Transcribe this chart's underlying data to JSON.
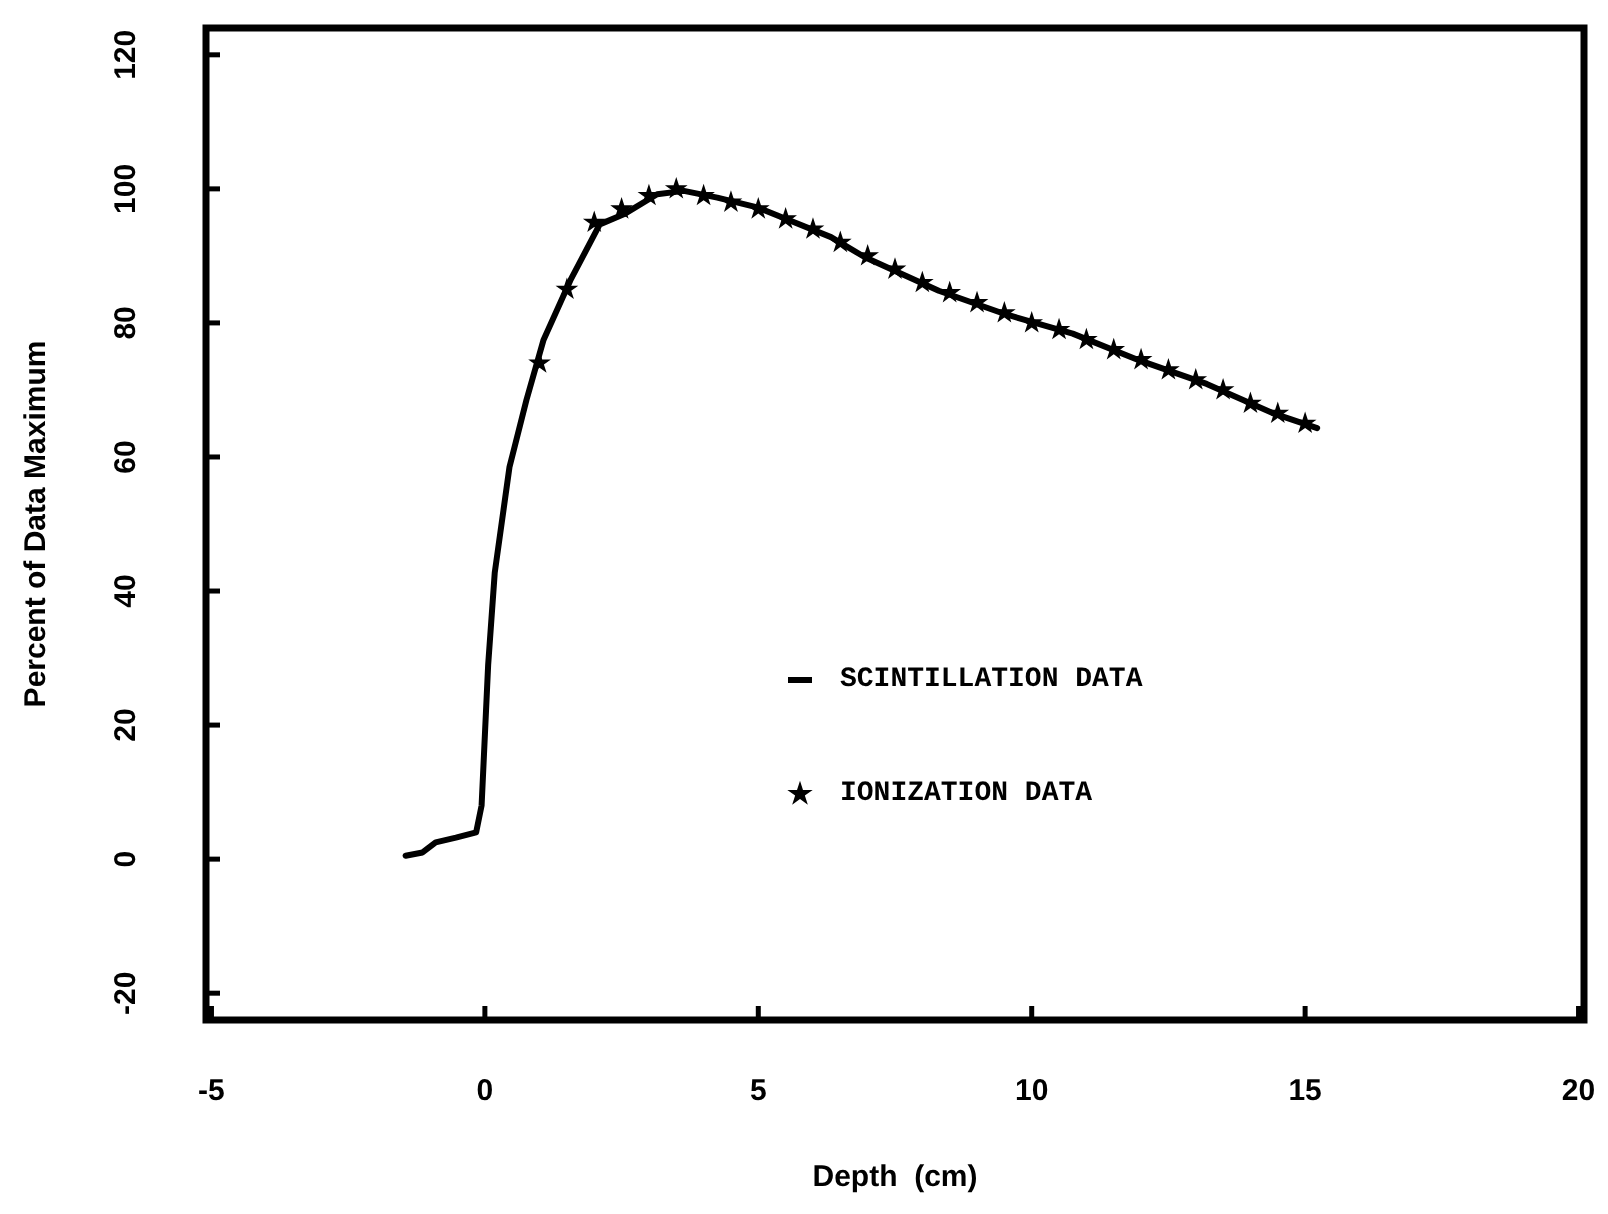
{
  "chart_data": {
    "type": "line",
    "xlabel": "Depth  (cm)",
    "ylabel": "Percent of Data Maximum",
    "xlim": [
      -5.1,
      20.1
    ],
    "ylim": [
      -24,
      124
    ],
    "xticks": [
      -5,
      0,
      5,
      10,
      15,
      20
    ],
    "yticks": [
      -20,
      0,
      20,
      40,
      60,
      80,
      100,
      120
    ],
    "grid": false,
    "legend": "right",
    "series": [
      {
        "name": "SCINTILLATION DATA",
        "color": "#000000",
        "line_style": "solid",
        "marker": "none",
        "x": [
          -1.45,
          -1.14,
          -0.9,
          -0.53,
          -0.16,
          -0.06,
          0.06,
          0.18,
          0.45,
          0.76,
          1.07,
          1.56,
          2.1,
          2.54,
          3.15,
          3.64,
          4.25,
          5.0,
          5.6,
          6.33,
          6.95,
          8.3,
          9.52,
          10.75,
          11.97,
          13.2,
          14.42,
          15.22
        ],
        "values": [
          0.5,
          1,
          2.5,
          3.2,
          4,
          8,
          29,
          42.7,
          58.5,
          68.5,
          77.4,
          86.3,
          94.7,
          96.2,
          99.2,
          99.7,
          98.7,
          97.2,
          95.2,
          92.8,
          89.8,
          84.8,
          81.3,
          78.4,
          74.4,
          70.9,
          66.5,
          64.3
        ]
      },
      {
        "name": "IONIZATION DATA",
        "color": "#000000",
        "type": "scatter",
        "marker": "star",
        "x": [
          1.0,
          1.5,
          2.0,
          2.5,
          3.0,
          3.5,
          4.0,
          4.5,
          5,
          5.5,
          6,
          6.5,
          7,
          7.5,
          8,
          8.5,
          9,
          9.5,
          10,
          10.5,
          11,
          11.5,
          12,
          12.5,
          13,
          13.5,
          14,
          14.5,
          15
        ],
        "values": [
          74,
          85,
          95,
          97,
          99,
          100,
          99,
          98,
          97,
          95.5,
          94,
          92,
          90,
          88,
          86,
          84.5,
          83,
          81.5,
          80,
          79,
          77.5,
          76,
          74.5,
          73,
          71.5,
          70,
          68,
          66.5,
          65
        ]
      }
    ]
  }
}
